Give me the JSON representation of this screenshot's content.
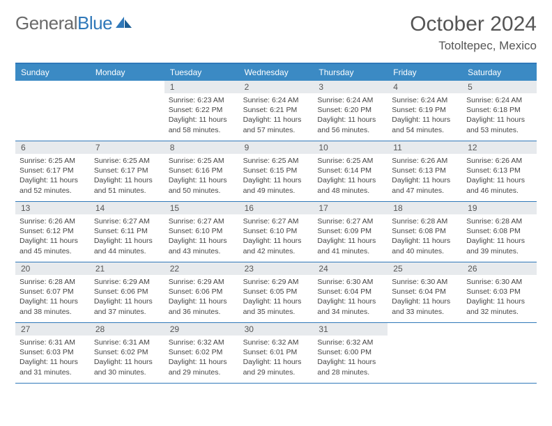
{
  "brand": {
    "word1": "General",
    "word2": "Blue"
  },
  "title": "October 2024",
  "location": "Totoltepec, Mexico",
  "colors": {
    "header_bg": "#3b8ac4",
    "border": "#2f78b9",
    "daynum_bg": "#e7eaed",
    "text": "#444444"
  },
  "day_names": [
    "Sunday",
    "Monday",
    "Tuesday",
    "Wednesday",
    "Thursday",
    "Friday",
    "Saturday"
  ],
  "weeks": [
    [
      {
        "n": "",
        "sr": "",
        "ss": "",
        "dl": ""
      },
      {
        "n": "",
        "sr": "",
        "ss": "",
        "dl": ""
      },
      {
        "n": "1",
        "sr": "Sunrise: 6:23 AM",
        "ss": "Sunset: 6:22 PM",
        "dl": "Daylight: 11 hours and 58 minutes."
      },
      {
        "n": "2",
        "sr": "Sunrise: 6:24 AM",
        "ss": "Sunset: 6:21 PM",
        "dl": "Daylight: 11 hours and 57 minutes."
      },
      {
        "n": "3",
        "sr": "Sunrise: 6:24 AM",
        "ss": "Sunset: 6:20 PM",
        "dl": "Daylight: 11 hours and 56 minutes."
      },
      {
        "n": "4",
        "sr": "Sunrise: 6:24 AM",
        "ss": "Sunset: 6:19 PM",
        "dl": "Daylight: 11 hours and 54 minutes."
      },
      {
        "n": "5",
        "sr": "Sunrise: 6:24 AM",
        "ss": "Sunset: 6:18 PM",
        "dl": "Daylight: 11 hours and 53 minutes."
      }
    ],
    [
      {
        "n": "6",
        "sr": "Sunrise: 6:25 AM",
        "ss": "Sunset: 6:17 PM",
        "dl": "Daylight: 11 hours and 52 minutes."
      },
      {
        "n": "7",
        "sr": "Sunrise: 6:25 AM",
        "ss": "Sunset: 6:17 PM",
        "dl": "Daylight: 11 hours and 51 minutes."
      },
      {
        "n": "8",
        "sr": "Sunrise: 6:25 AM",
        "ss": "Sunset: 6:16 PM",
        "dl": "Daylight: 11 hours and 50 minutes."
      },
      {
        "n": "9",
        "sr": "Sunrise: 6:25 AM",
        "ss": "Sunset: 6:15 PM",
        "dl": "Daylight: 11 hours and 49 minutes."
      },
      {
        "n": "10",
        "sr": "Sunrise: 6:25 AM",
        "ss": "Sunset: 6:14 PM",
        "dl": "Daylight: 11 hours and 48 minutes."
      },
      {
        "n": "11",
        "sr": "Sunrise: 6:26 AM",
        "ss": "Sunset: 6:13 PM",
        "dl": "Daylight: 11 hours and 47 minutes."
      },
      {
        "n": "12",
        "sr": "Sunrise: 6:26 AM",
        "ss": "Sunset: 6:13 PM",
        "dl": "Daylight: 11 hours and 46 minutes."
      }
    ],
    [
      {
        "n": "13",
        "sr": "Sunrise: 6:26 AM",
        "ss": "Sunset: 6:12 PM",
        "dl": "Daylight: 11 hours and 45 minutes."
      },
      {
        "n": "14",
        "sr": "Sunrise: 6:27 AM",
        "ss": "Sunset: 6:11 PM",
        "dl": "Daylight: 11 hours and 44 minutes."
      },
      {
        "n": "15",
        "sr": "Sunrise: 6:27 AM",
        "ss": "Sunset: 6:10 PM",
        "dl": "Daylight: 11 hours and 43 minutes."
      },
      {
        "n": "16",
        "sr": "Sunrise: 6:27 AM",
        "ss": "Sunset: 6:10 PM",
        "dl": "Daylight: 11 hours and 42 minutes."
      },
      {
        "n": "17",
        "sr": "Sunrise: 6:27 AM",
        "ss": "Sunset: 6:09 PM",
        "dl": "Daylight: 11 hours and 41 minutes."
      },
      {
        "n": "18",
        "sr": "Sunrise: 6:28 AM",
        "ss": "Sunset: 6:08 PM",
        "dl": "Daylight: 11 hours and 40 minutes."
      },
      {
        "n": "19",
        "sr": "Sunrise: 6:28 AM",
        "ss": "Sunset: 6:08 PM",
        "dl": "Daylight: 11 hours and 39 minutes."
      }
    ],
    [
      {
        "n": "20",
        "sr": "Sunrise: 6:28 AM",
        "ss": "Sunset: 6:07 PM",
        "dl": "Daylight: 11 hours and 38 minutes."
      },
      {
        "n": "21",
        "sr": "Sunrise: 6:29 AM",
        "ss": "Sunset: 6:06 PM",
        "dl": "Daylight: 11 hours and 37 minutes."
      },
      {
        "n": "22",
        "sr": "Sunrise: 6:29 AM",
        "ss": "Sunset: 6:06 PM",
        "dl": "Daylight: 11 hours and 36 minutes."
      },
      {
        "n": "23",
        "sr": "Sunrise: 6:29 AM",
        "ss": "Sunset: 6:05 PM",
        "dl": "Daylight: 11 hours and 35 minutes."
      },
      {
        "n": "24",
        "sr": "Sunrise: 6:30 AM",
        "ss": "Sunset: 6:04 PM",
        "dl": "Daylight: 11 hours and 34 minutes."
      },
      {
        "n": "25",
        "sr": "Sunrise: 6:30 AM",
        "ss": "Sunset: 6:04 PM",
        "dl": "Daylight: 11 hours and 33 minutes."
      },
      {
        "n": "26",
        "sr": "Sunrise: 6:30 AM",
        "ss": "Sunset: 6:03 PM",
        "dl": "Daylight: 11 hours and 32 minutes."
      }
    ],
    [
      {
        "n": "27",
        "sr": "Sunrise: 6:31 AM",
        "ss": "Sunset: 6:03 PM",
        "dl": "Daylight: 11 hours and 31 minutes."
      },
      {
        "n": "28",
        "sr": "Sunrise: 6:31 AM",
        "ss": "Sunset: 6:02 PM",
        "dl": "Daylight: 11 hours and 30 minutes."
      },
      {
        "n": "29",
        "sr": "Sunrise: 6:32 AM",
        "ss": "Sunset: 6:02 PM",
        "dl": "Daylight: 11 hours and 29 minutes."
      },
      {
        "n": "30",
        "sr": "Sunrise: 6:32 AM",
        "ss": "Sunset: 6:01 PM",
        "dl": "Daylight: 11 hours and 29 minutes."
      },
      {
        "n": "31",
        "sr": "Sunrise: 6:32 AM",
        "ss": "Sunset: 6:00 PM",
        "dl": "Daylight: 11 hours and 28 minutes."
      },
      {
        "n": "",
        "sr": "",
        "ss": "",
        "dl": ""
      },
      {
        "n": "",
        "sr": "",
        "ss": "",
        "dl": ""
      }
    ]
  ]
}
